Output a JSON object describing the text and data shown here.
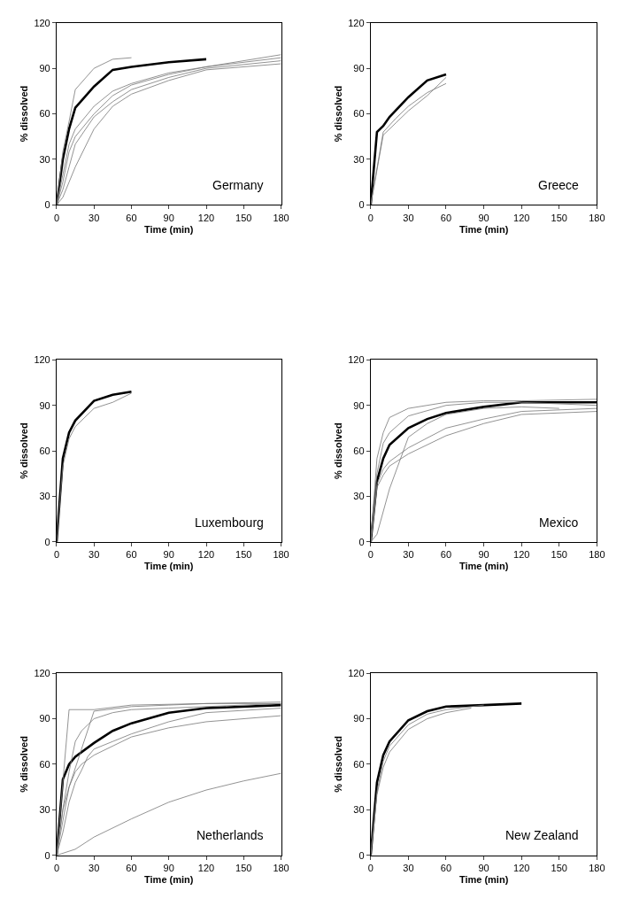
{
  "chart_data": [
    {
      "type": "line",
      "xlabel": "Time (min)",
      "ylabel": "% dissolved",
      "annotations": [
        "Germany"
      ],
      "xlim": [
        0,
        180
      ],
      "xticks": [
        0,
        30,
        60,
        90,
        120,
        150,
        180
      ],
      "ylim": [
        0,
        120
      ],
      "yticks": [
        0,
        30,
        60,
        90,
        120
      ],
      "grid": false,
      "series": [
        {
          "color": "#000000",
          "x": [
            0,
            5,
            10,
            15,
            30,
            45,
            60,
            90,
            120
          ],
          "values": [
            0,
            30,
            50,
            64,
            78,
            89,
            91,
            94,
            96
          ]
        },
        {
          "color": "#777777",
          "x": [
            0,
            5,
            10,
            15,
            30,
            45,
            60
          ],
          "values": [
            0,
            35,
            55,
            76,
            90,
            96,
            97
          ]
        },
        {
          "color": "#777777",
          "x": [
            0,
            5,
            10,
            15,
            30,
            45,
            60,
            90,
            120,
            180
          ],
          "values": [
            0,
            20,
            40,
            50,
            65,
            75,
            80,
            87,
            91,
            97
          ]
        },
        {
          "color": "#777777",
          "x": [
            0,
            5,
            10,
            15,
            30,
            45,
            60,
            90,
            120,
            180
          ],
          "values": [
            0,
            10,
            25,
            40,
            58,
            68,
            76,
            84,
            90,
            95
          ]
        },
        {
          "color": "#777777",
          "x": [
            0,
            5,
            10,
            15,
            30,
            45,
            60,
            90,
            120,
            180
          ],
          "values": [
            0,
            5,
            15,
            25,
            50,
            65,
            73,
            82,
            89,
            93
          ]
        },
        {
          "color": "#777777",
          "x": [
            0,
            5,
            10,
            15,
            30,
            45,
            60,
            90,
            120,
            180
          ],
          "values": [
            0,
            15,
            35,
            45,
            60,
            72,
            79,
            86,
            91,
            99
          ]
        }
      ]
    },
    {
      "type": "line",
      "xlabel": "Time (min)",
      "ylabel": "% dissolved",
      "annotations": [
        "Greece"
      ],
      "xlim": [
        0,
        180
      ],
      "xticks": [
        0,
        30,
        60,
        90,
        120,
        150,
        180
      ],
      "ylim": [
        0,
        120
      ],
      "yticks": [
        0,
        30,
        60,
        90,
        120
      ],
      "grid": false,
      "series": [
        {
          "color": "#000000",
          "x": [
            0,
            5,
            10,
            15,
            30,
            45,
            60
          ],
          "values": [
            0,
            48,
            52,
            58,
            71,
            82,
            86
          ]
        },
        {
          "color": "#777777",
          "x": [
            0,
            10,
            20,
            30,
            45,
            60
          ],
          "values": [
            0,
            46,
            54,
            62,
            72,
            84
          ]
        },
        {
          "color": "#777777",
          "x": [
            0,
            10,
            20,
            30,
            45,
            60
          ],
          "values": [
            0,
            48,
            57,
            65,
            74,
            80
          ]
        }
      ]
    },
    {
      "type": "line",
      "xlabel": "Time (min)",
      "ylabel": "% dissolved",
      "annotations": [
        "Luxembourg"
      ],
      "xlim": [
        0,
        180
      ],
      "xticks": [
        0,
        30,
        60,
        90,
        120,
        150,
        180
      ],
      "ylim": [
        0,
        120
      ],
      "yticks": [
        0,
        30,
        60,
        90,
        120
      ],
      "grid": false,
      "series": [
        {
          "color": "#000000",
          "x": [
            0,
            5,
            10,
            15,
            30,
            45,
            60
          ],
          "values": [
            0,
            55,
            72,
            80,
            93,
            97,
            99
          ]
        },
        {
          "color": "#777777",
          "x": [
            0,
            5,
            10,
            15,
            30,
            45,
            60
          ],
          "values": [
            0,
            50,
            68,
            76,
            88,
            92,
            98
          ]
        }
      ]
    },
    {
      "type": "line",
      "xlabel": "Time (min)",
      "ylabel": "% dissolved",
      "annotations": [
        "Mexico"
      ],
      "xlim": [
        0,
        180
      ],
      "xticks": [
        0,
        30,
        60,
        90,
        120,
        150,
        180
      ],
      "ylim": [
        0,
        120
      ],
      "yticks": [
        0,
        30,
        60,
        90,
        120
      ],
      "grid": false,
      "series": [
        {
          "color": "#000000",
          "x": [
            0,
            5,
            10,
            15,
            30,
            45,
            60,
            90,
            120,
            180
          ],
          "values": [
            0,
            40,
            55,
            64,
            75,
            81,
            85,
            89,
            92,
            92
          ]
        },
        {
          "color": "#777777",
          "x": [
            0,
            5,
            10,
            15,
            30,
            60,
            90,
            120,
            180
          ],
          "values": [
            0,
            55,
            72,
            82,
            88,
            92,
            93,
            93,
            94
          ]
        },
        {
          "color": "#777777",
          "x": [
            0,
            5,
            10,
            15,
            30,
            60,
            90,
            120,
            180
          ],
          "values": [
            0,
            45,
            65,
            72,
            83,
            90,
            92,
            92,
            90
          ]
        },
        {
          "color": "#777777",
          "x": [
            0,
            5,
            15,
            30,
            45,
            60,
            90,
            120,
            150
          ],
          "values": [
            0,
            5,
            35,
            69,
            78,
            84,
            88,
            89,
            88
          ]
        },
        {
          "color": "#777777",
          "x": [
            0,
            5,
            10,
            15,
            30,
            60,
            90,
            120,
            180
          ],
          "values": [
            0,
            38,
            48,
            53,
            62,
            75,
            81,
            86,
            88
          ]
        },
        {
          "color": "#777777",
          "x": [
            0,
            5,
            10,
            15,
            30,
            60,
            90,
            120,
            180
          ],
          "values": [
            0,
            36,
            44,
            50,
            58,
            70,
            78,
            84,
            86
          ]
        }
      ]
    },
    {
      "type": "line",
      "xlabel": "Time (min)",
      "ylabel": "% dissolved",
      "annotations": [
        "Netherlands"
      ],
      "xlim": [
        0,
        180
      ],
      "xticks": [
        0,
        30,
        60,
        90,
        120,
        150,
        180
      ],
      "ylim": [
        0,
        120
      ],
      "yticks": [
        0,
        30,
        60,
        90,
        120
      ],
      "grid": false,
      "series": [
        {
          "color": "#000000",
          "x": [
            0,
            5,
            10,
            15,
            30,
            45,
            60,
            90,
            120,
            180
          ],
          "values": [
            0,
            50,
            60,
            65,
            74,
            82,
            87,
            94,
            97,
            99
          ]
        },
        {
          "color": "#777777",
          "x": [
            0,
            10,
            30,
            60,
            120,
            180
          ],
          "values": [
            0,
            96,
            96,
            99,
            100,
            101
          ]
        },
        {
          "color": "#777777",
          "x": [
            0,
            5,
            10,
            15,
            20,
            25,
            30,
            45,
            60,
            90,
            120,
            180
          ],
          "values": [
            0,
            30,
            55,
            75,
            82,
            86,
            90,
            94,
            96,
            97,
            98,
            100
          ]
        },
        {
          "color": "#777777",
          "x": [
            0,
            5,
            10,
            15,
            20,
            25,
            30,
            45,
            60,
            90,
            120,
            180
          ],
          "values": [
            0,
            15,
            35,
            48,
            56,
            65,
            70,
            75,
            80,
            88,
            94,
            97
          ]
        },
        {
          "color": "#777777",
          "x": [
            0,
            10,
            20,
            30,
            60,
            90,
            120,
            180
          ],
          "values": [
            0,
            45,
            70,
            95,
            98,
            99,
            100,
            100
          ]
        },
        {
          "color": "#777777",
          "x": [
            0,
            5,
            10,
            15,
            20,
            30,
            60,
            90,
            120,
            180
          ],
          "values": [
            0,
            30,
            45,
            55,
            60,
            66,
            78,
            84,
            88,
            92
          ]
        },
        {
          "color": "#777777",
          "x": [
            0,
            15,
            30,
            60,
            90,
            120,
            150,
            180
          ],
          "values": [
            0,
            4,
            12,
            24,
            35,
            43,
            49,
            54
          ]
        }
      ]
    },
    {
      "type": "line",
      "xlabel": "Time (min)",
      "ylabel": "% dissolved",
      "annotations": [
        "New Zealand"
      ],
      "xlim": [
        0,
        180
      ],
      "xticks": [
        0,
        30,
        60,
        90,
        120,
        150,
        180
      ],
      "ylim": [
        0,
        120
      ],
      "yticks": [
        0,
        30,
        60,
        90,
        120
      ],
      "grid": false,
      "series": [
        {
          "color": "#000000",
          "x": [
            0,
            5,
            10,
            15,
            30,
            45,
            60,
            90,
            120
          ],
          "values": [
            0,
            48,
            66,
            75,
            89,
            95,
            98,
            99,
            100
          ]
        },
        {
          "color": "#777777",
          "x": [
            0,
            5,
            10,
            15,
            30,
            45,
            60,
            80
          ],
          "values": [
            0,
            40,
            58,
            68,
            83,
            90,
            94,
            97
          ]
        },
        {
          "color": "#777777",
          "x": [
            0,
            5,
            10,
            15,
            30,
            45,
            60,
            90
          ],
          "values": [
            0,
            42,
            62,
            72,
            86,
            93,
            96,
            99
          ]
        }
      ]
    }
  ]
}
